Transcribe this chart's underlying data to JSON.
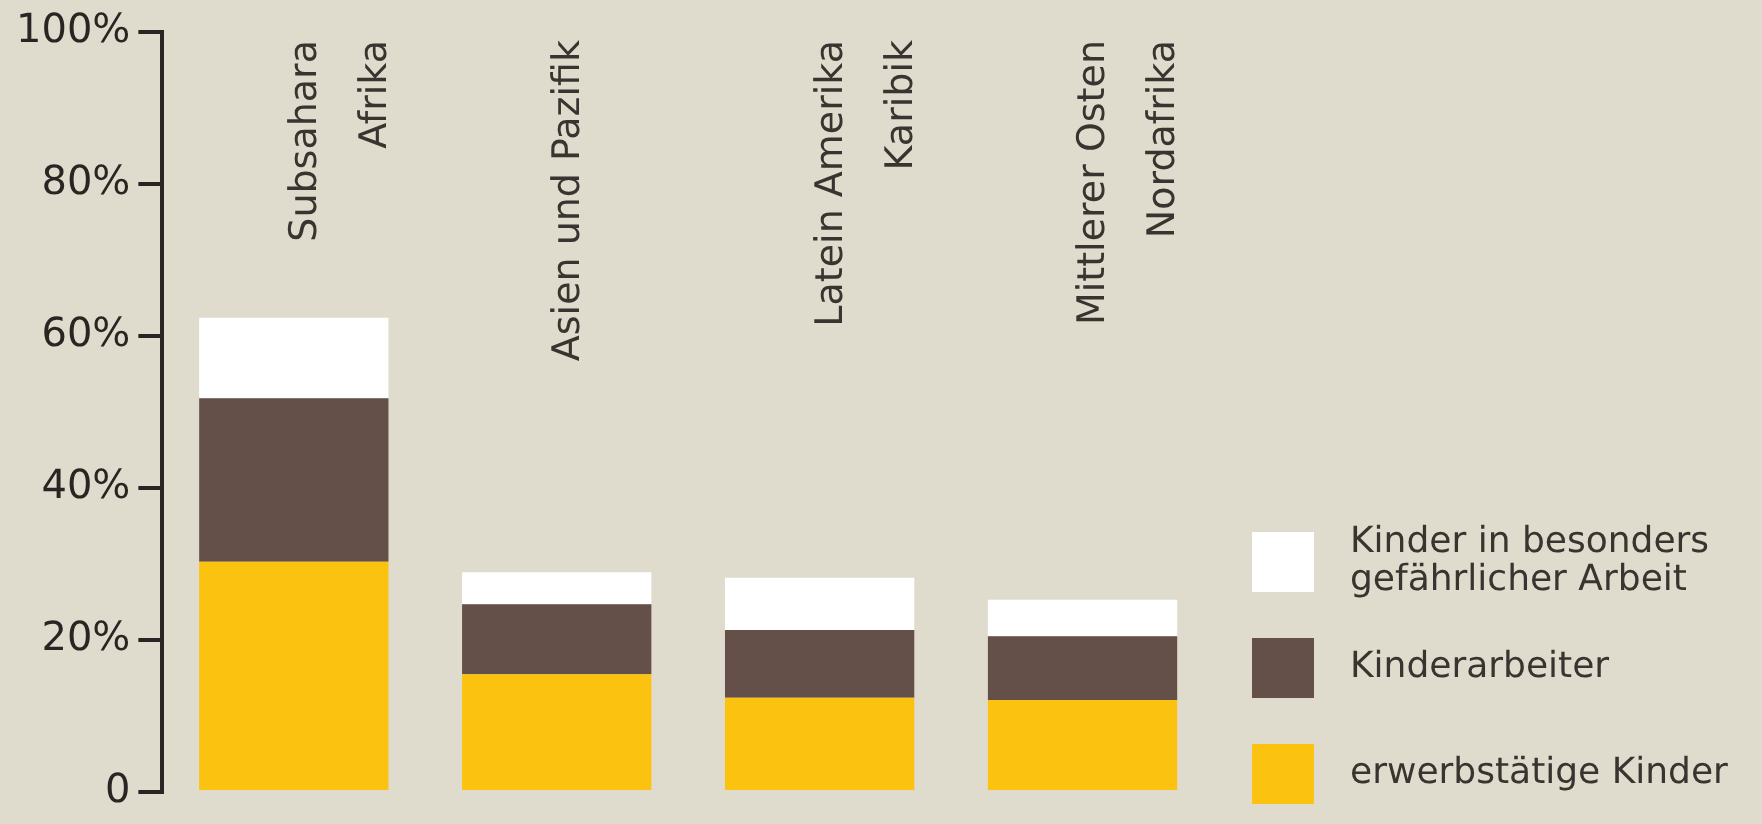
{
  "chart_data": {
    "type": "bar",
    "stacked": true,
    "categories": [
      "Subsahara\nAfrika",
      "Asien und Pazifik",
      "Latein Amerika\nKaribik",
      "Mittlerer Osten\nNordafrika"
    ],
    "series": [
      {
        "name": "erwerbstätige Kinder",
        "color": "#fbc30f",
        "values": [
          30.3,
          15.5,
          12.4,
          12.1
        ]
      },
      {
        "name": "Kinderarbeiter",
        "color": "#645049",
        "values": [
          21.5,
          9.2,
          8.9,
          8.4
        ]
      },
      {
        "name": "Kinder in besonders\ngefährlicher Arbeit",
        "color": "#ffffff",
        "values": [
          10.6,
          4.2,
          6.9,
          4.8
        ]
      }
    ],
    "ylim": [
      0,
      100
    ],
    "yticks": [
      {
        "value": 0,
        "label": "0"
      },
      {
        "value": 20,
        "label": "20%"
      },
      {
        "value": 40,
        "label": "40%"
      },
      {
        "value": 60,
        "label": "60%"
      },
      {
        "value": 80,
        "label": "80%"
      },
      {
        "value": 100,
        "label": "100%"
      }
    ],
    "grid": false,
    "legend": "right",
    "tick_labels": "y"
  }
}
